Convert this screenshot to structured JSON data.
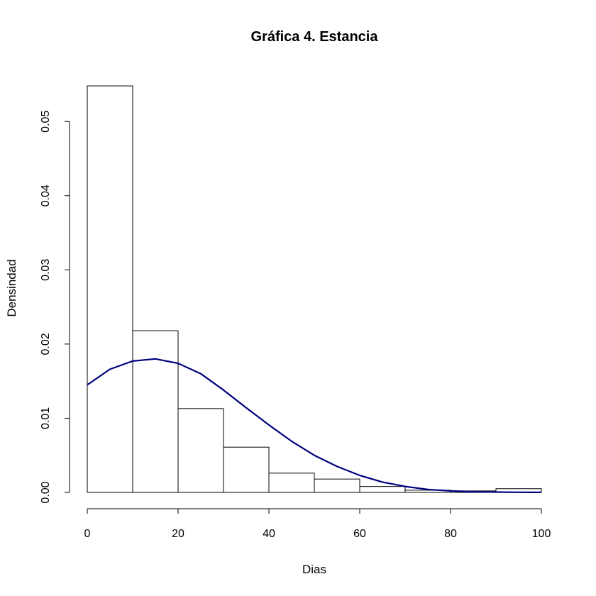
{
  "chart_data": {
    "type": "bar",
    "title": "Gráfica 4. Estancia",
    "xlabel": "Dias",
    "ylabel": "Densindad",
    "xlim": [
      0,
      100
    ],
    "ylim": [
      0,
      0.055
    ],
    "grid": false,
    "bins": [
      {
        "from": 0,
        "to": 10,
        "density": 0.0548
      },
      {
        "from": 10,
        "to": 20,
        "density": 0.0218
      },
      {
        "from": 20,
        "to": 30,
        "density": 0.0113
      },
      {
        "from": 30,
        "to": 40,
        "density": 0.0061
      },
      {
        "from": 40,
        "to": 50,
        "density": 0.0026
      },
      {
        "from": 50,
        "to": 60,
        "density": 0.0018
      },
      {
        "from": 60,
        "to": 70,
        "density": 0.0008
      },
      {
        "from": 70,
        "to": 80,
        "density": 0.0003
      },
      {
        "from": 80,
        "to": 90,
        "density": 0.0002
      },
      {
        "from": 90,
        "to": 100,
        "density": 0.0005
      }
    ],
    "curve": {
      "color": "#000080",
      "x": [
        0,
        5,
        10,
        15,
        20,
        25,
        30,
        35,
        40,
        45,
        50,
        55,
        60,
        65,
        70,
        75,
        80,
        85,
        90,
        95,
        100
      ],
      "y": [
        0.0145,
        0.0166,
        0.0177,
        0.018,
        0.0174,
        0.016,
        0.0138,
        0.0114,
        0.0091,
        0.0069,
        0.005,
        0.0035,
        0.0023,
        0.0014,
        0.0008,
        0.0004,
        0.0002,
        0.0001,
        5e-05,
        2e-05,
        1e-05
      ]
    },
    "x_ticks": [
      "0",
      "20",
      "40",
      "60",
      "80",
      "100"
    ],
    "x_tick_values": [
      0,
      20,
      40,
      60,
      80,
      100
    ],
    "y_ticks": [
      "0.00",
      "0.01",
      "0.02",
      "0.03",
      "0.04",
      "0.05"
    ],
    "y_tick_values": [
      0,
      0.01,
      0.02,
      0.03,
      0.04,
      0.05
    ]
  }
}
